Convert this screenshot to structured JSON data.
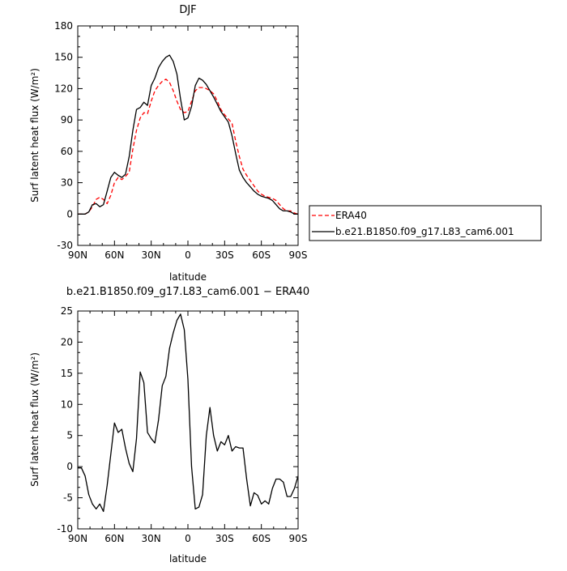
{
  "chart_data": [
    {
      "type": "line",
      "title": "DJF",
      "xlabel": "latitude",
      "ylabel": "Surf latent heat flux (W/m²)",
      "x_ticks": [
        -90,
        -60,
        -30,
        0,
        30,
        60,
        90
      ],
      "x_tick_labels": [
        "90N",
        "60N",
        "30N",
        "0",
        "30S",
        "60S",
        "90S"
      ],
      "xlim": [
        -90,
        90
      ],
      "ylim": [
        -30,
        180
      ],
      "y_ticks": [
        -30,
        0,
        30,
        60,
        90,
        120,
        150,
        180
      ],
      "legend_position": "right",
      "series": [
        {
          "name": "ERA40",
          "color": "#ff0000",
          "dash": "dashed",
          "x": [
            -90,
            -87,
            -84,
            -81,
            -78,
            -75,
            -72,
            -69,
            -66,
            -63,
            -60,
            -57,
            -54,
            -51,
            -48,
            -45,
            -42,
            -39,
            -36,
            -33,
            -30,
            -27,
            -24,
            -21,
            -18,
            -15,
            -12,
            -9,
            -6,
            -3,
            0,
            3,
            6,
            9,
            12,
            15,
            18,
            21,
            24,
            27,
            30,
            33,
            36,
            39,
            42,
            45,
            48,
            51,
            54,
            57,
            60,
            63,
            66,
            69,
            72,
            75,
            78,
            81,
            84,
            87,
            90
          ],
          "y": [
            0,
            0,
            0,
            2,
            7,
            14,
            16,
            14,
            10,
            18,
            30,
            35,
            33,
            36,
            40,
            62,
            80,
            92,
            97,
            96,
            108,
            118,
            123,
            127,
            129,
            126,
            118,
            108,
            100,
            97,
            98,
            108,
            118,
            121,
            121,
            120,
            118,
            115,
            108,
            100,
            95,
            91,
            87,
            70,
            55,
            43,
            37,
            32,
            27,
            22,
            19,
            17,
            16,
            15,
            13,
            9,
            5,
            3,
            3,
            1,
            0
          ]
        },
        {
          "name": "b.e21.B1850.f09_g17.L83_cam6.001",
          "color": "#000000",
          "dash": "solid",
          "x": [
            -90,
            -87,
            -84,
            -81,
            -78,
            -75,
            -72,
            -69,
            -66,
            -63,
            -60,
            -57,
            -54,
            -51,
            -48,
            -45,
            -42,
            -39,
            -36,
            -33,
            -30,
            -27,
            -24,
            -21,
            -18,
            -15,
            -12,
            -9,
            -6,
            -3,
            0,
            3,
            6,
            9,
            12,
            15,
            18,
            21,
            24,
            27,
            30,
            33,
            36,
            39,
            42,
            45,
            48,
            51,
            54,
            57,
            60,
            63,
            66,
            69,
            72,
            75,
            78,
            81,
            84,
            87,
            90
          ],
          "y": [
            0,
            0,
            0,
            2,
            9,
            10,
            7,
            9,
            22,
            35,
            40,
            37,
            35,
            38,
            55,
            80,
            100,
            102,
            107,
            104,
            123,
            130,
            140,
            146,
            150,
            152,
            146,
            134,
            110,
            90,
            92,
            103,
            123,
            130,
            128,
            124,
            118,
            112,
            105,
            98,
            93,
            88,
            75,
            58,
            42,
            35,
            30,
            26,
            22,
            19,
            17,
            16,
            15,
            13,
            9,
            5,
            3,
            3,
            2,
            0,
            0
          ]
        }
      ]
    },
    {
      "type": "line",
      "title": "b.e21.B1850.f09_g17.L83_cam6.001 − ERA40",
      "xlabel": "latitude",
      "ylabel": "Surf latent heat flux (W/m²)",
      "x_ticks": [
        -90,
        -60,
        -30,
        0,
        30,
        60,
        90
      ],
      "x_tick_labels": [
        "90N",
        "60N",
        "30N",
        "0",
        "30S",
        "60S",
        "90S"
      ],
      "xlim": [
        -90,
        90
      ],
      "ylim": [
        -10,
        25
      ],
      "y_ticks": [
        -10,
        -5,
        0,
        5,
        10,
        15,
        20,
        25
      ],
      "series": [
        {
          "color": "#000000",
          "dash": "solid",
          "x": [
            -90,
            -87,
            -84,
            -81,
            -78,
            -75,
            -72,
            -69,
            -66,
            -63,
            -60,
            -57,
            -54,
            -51,
            -48,
            -45,
            -42,
            -39,
            -36,
            -33,
            -30,
            -27,
            -24,
            -21,
            -18,
            -15,
            -12,
            -9,
            -6,
            -3,
            0,
            3,
            6,
            9,
            12,
            15,
            18,
            21,
            24,
            27,
            30,
            33,
            36,
            39,
            42,
            45,
            48,
            51,
            54,
            57,
            60,
            63,
            66,
            69,
            72,
            75,
            78,
            81,
            84,
            87,
            90
          ],
          "y": [
            -0.2,
            -0.2,
            -1.5,
            -4.5,
            -6,
            -6.8,
            -6,
            -7.2,
            -3,
            2,
            7,
            5.5,
            6,
            3,
            0.5,
            -0.8,
            4.5,
            15.2,
            13.5,
            5.5,
            4.5,
            3.8,
            7.5,
            13,
            14.5,
            19,
            21.5,
            23.5,
            24.5,
            22,
            14,
            0,
            -6.8,
            -6.5,
            -4.5,
            5,
            9.5,
            5,
            2.5,
            4,
            3.5,
            5,
            2.5,
            3.2,
            3,
            3,
            -2,
            -6.3,
            -4.2,
            -4.6,
            -6,
            -5.5,
            -6,
            -3.5,
            -2,
            -2,
            -2.5,
            -4.8,
            -4.8,
            -3.5,
            -1.5
          ]
        }
      ]
    }
  ]
}
